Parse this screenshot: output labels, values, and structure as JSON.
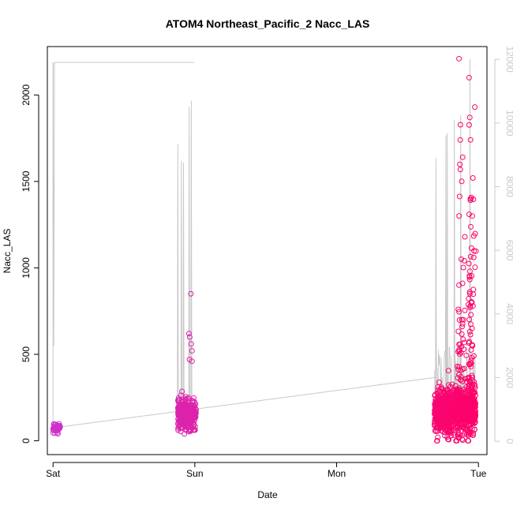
{
  "chart_data": {
    "type": "scatter",
    "title": "ATOM4 Northeast_Pacific_2 Nacc_LAS",
    "xlabel": "Date",
    "ylabel": "Nacc_LAS",
    "x_ticks": [
      "Sat",
      "Sun",
      "Mon",
      "Tue"
    ],
    "xlim_days": [
      -0.04,
      3.06
    ],
    "ylim": [
      -80,
      2280
    ],
    "y_ticks": [
      0,
      500,
      1000,
      1500,
      2000
    ],
    "y2lim": [
      -420,
      12400
    ],
    "y2_ticks": [
      0,
      2000,
      4000,
      6000,
      8000,
      10000,
      12000
    ],
    "grid": false,
    "series": [
      {
        "kind": "points",
        "color_low": "#cc33cc",
        "color_high": "#ff0066",
        "clusters": [
          {
            "day_start": 0.0,
            "day_end": 0.05,
            "n": 60,
            "median": 75,
            "spread": 25,
            "max": 195,
            "min": 40
          },
          {
            "day_start": 0.88,
            "day_end": 1.01,
            "n": 340,
            "median": 150,
            "spread": 70,
            "max": 850,
            "min": 25,
            "outliers": [
              850,
              620,
              600,
              560,
              520,
              470,
              460
            ]
          },
          {
            "day_start": 2.69,
            "day_end": 2.98,
            "n": 900,
            "median": 170,
            "spread": 120,
            "max": 2210,
            "min": 0,
            "outliers": [
              2210,
              2100,
              1930,
              1870,
              1740,
              1640,
              1520,
              1400,
              1300,
              1180,
              1050,
              980,
              900,
              850,
              800,
              780,
              760,
              700,
              650
            ]
          }
        ]
      },
      {
        "kind": "line",
        "axis": "right",
        "color": "#c8c8c8",
        "trace": [
          {
            "day": 0.0,
            "v": 11900
          },
          {
            "day": 0.005,
            "v": 3000
          },
          {
            "day": 0.01,
            "v": 11900
          },
          {
            "day": 0.99,
            "v": 11900
          },
          {
            "day": 0.995,
            "v": 11900
          }
        ],
        "baseline": [
          {
            "day": 0.0,
            "v": 420
          },
          {
            "day": 2.69,
            "v": 2000
          }
        ],
        "spikes": [
          {
            "day": 0.88,
            "v": 9350
          },
          {
            "day": 0.905,
            "v": 8800
          },
          {
            "day": 0.92,
            "v": 8750
          },
          {
            "day": 0.96,
            "v": 10500
          },
          {
            "day": 0.975,
            "v": 10700
          },
          {
            "day": 2.7,
            "v": 8900
          },
          {
            "day": 2.77,
            "v": 9600
          },
          {
            "day": 2.78,
            "v": 9680
          },
          {
            "day": 2.83,
            "v": 10100
          },
          {
            "day": 2.875,
            "v": 10250
          },
          {
            "day": 2.94,
            "v": 12000
          }
        ]
      }
    ]
  }
}
